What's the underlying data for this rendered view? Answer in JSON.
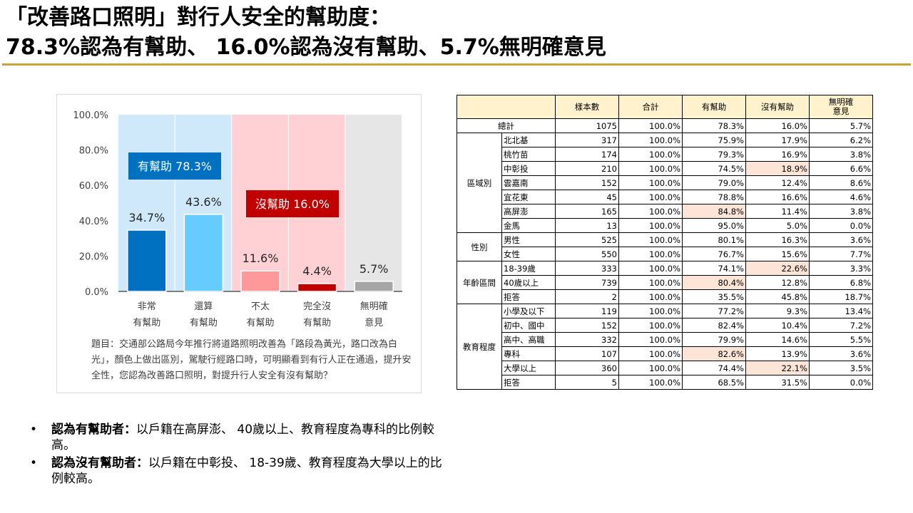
{
  "title_line1": "「改善路口照明」對行人安全的幫助度：",
  "title_line2": "78.3%認為有幫助、 16.0%認為沒有幫助、5.7%無明確意見",
  "chart_data": {
    "type": "bar",
    "categories": [
      [
        "非常",
        "有幫助"
      ],
      [
        "還算",
        "有幫助"
      ],
      [
        "不太",
        "有幫助"
      ],
      [
        "完全沒",
        "有幫助"
      ],
      [
        "無明確",
        "意見"
      ]
    ],
    "values": [
      34.7,
      43.6,
      11.6,
      4.4,
      5.7
    ],
    "value_labels": [
      "34.7%",
      "43.6%",
      "11.6%",
      "4.4%",
      "5.7%"
    ],
    "bar_colors": [
      "#0070c0",
      "#66ccff",
      "#ff9999",
      "#c00000",
      "#a6a6a6"
    ],
    "bg_colors": [
      "#cfe9fa",
      "#cfe9fa",
      "#ffd1d5",
      "#ffd1d5",
      "#e6e6e6"
    ],
    "yticks": [
      "100.0%",
      "80.0%",
      "60.0%",
      "40.0%",
      "20.0%",
      "0.0%"
    ],
    "ylim": [
      0,
      100
    ],
    "annotations": [
      {
        "text": "有幫助 78.3%",
        "color": "#0070c0"
      },
      {
        "text": "沒幫助 16.0%",
        "color": "#c00000"
      }
    ],
    "grid": false
  },
  "question": "題目：交通部公路局今年推行將道路照明改善為「路段為黃光，路口改為白光」，顏色上做出區別，駕駛行經路口時，可明顯看到有行人正在通過，提升安全性，您認為改善路口照明，對提升行人安全有沒有幫助？",
  "table": {
    "headers": [
      "樣本數",
      "合計",
      "有幫助",
      "沒有幫助",
      "無明確\n意見"
    ],
    "total": {
      "label": "總計",
      "values": [
        "1075",
        "100.0%",
        "78.3%",
        "16.0%",
        "5.7%"
      ]
    },
    "groups": [
      {
        "name": "區域別",
        "rows": [
          {
            "label": "北北基",
            "values": [
              "317",
              "100.0%",
              "75.9%",
              "17.9%",
              "6.2%"
            ],
            "hl": []
          },
          {
            "label": "桃竹苗",
            "values": [
              "174",
              "100.0%",
              "79.3%",
              "16.9%",
              "3.8%"
            ],
            "hl": []
          },
          {
            "label": "中彰投",
            "values": [
              "210",
              "100.0%",
              "74.5%",
              "18.9%",
              "6.6%"
            ],
            "hl": [
              3
            ]
          },
          {
            "label": "雲嘉南",
            "values": [
              "152",
              "100.0%",
              "79.0%",
              "12.4%",
              "8.6%"
            ],
            "hl": []
          },
          {
            "label": "宜花東",
            "values": [
              "45",
              "100.0%",
              "78.8%",
              "16.6%",
              "4.6%"
            ],
            "hl": []
          },
          {
            "label": "高屏澎",
            "values": [
              "165",
              "100.0%",
              "84.8%",
              "11.4%",
              "3.8%"
            ],
            "hl": [
              2
            ]
          },
          {
            "label": "金馬",
            "values": [
              "13",
              "100.0%",
              "95.0%",
              "5.0%",
              "0.0%"
            ],
            "hl": []
          }
        ]
      },
      {
        "name": "性別",
        "rows": [
          {
            "label": "男性",
            "values": [
              "525",
              "100.0%",
              "80.1%",
              "16.3%",
              "3.6%"
            ],
            "hl": []
          },
          {
            "label": "女性",
            "values": [
              "550",
              "100.0%",
              "76.7%",
              "15.6%",
              "7.7%"
            ],
            "hl": []
          }
        ]
      },
      {
        "name": "年齡區間",
        "rows": [
          {
            "label": "18-39歲",
            "values": [
              "333",
              "100.0%",
              "74.1%",
              "22.6%",
              "3.3%"
            ],
            "hl": [
              3
            ]
          },
          {
            "label": "40歲以上",
            "values": [
              "739",
              "100.0%",
              "80.4%",
              "12.8%",
              "6.8%"
            ],
            "hl": [
              2
            ]
          },
          {
            "label": "拒答",
            "values": [
              "2",
              "100.0%",
              "35.5%",
              "45.8%",
              "18.7%"
            ],
            "hl": []
          }
        ]
      },
      {
        "name": "教育程度",
        "rows": [
          {
            "label": "小學及以下",
            "values": [
              "119",
              "100.0%",
              "77.2%",
              "9.3%",
              "13.4%"
            ],
            "hl": []
          },
          {
            "label": "初中、國中",
            "values": [
              "152",
              "100.0%",
              "82.4%",
              "10.4%",
              "7.2%"
            ],
            "hl": []
          },
          {
            "label": "高中、高職",
            "values": [
              "332",
              "100.0%",
              "79.9%",
              "14.6%",
              "5.5%"
            ],
            "hl": []
          },
          {
            "label": "專科",
            "values": [
              "107",
              "100.0%",
              "82.6%",
              "13.9%",
              "3.6%"
            ],
            "hl": [
              2
            ]
          },
          {
            "label": "大學以上",
            "values": [
              "360",
              "100.0%",
              "74.4%",
              "22.1%",
              "3.5%"
            ],
            "hl": [
              3
            ]
          },
          {
            "label": "拒答",
            "values": [
              "5",
              "100.0%",
              "68.5%",
              "31.5%",
              "0.0%"
            ],
            "hl": []
          }
        ]
      }
    ],
    "highlight_color": "#fce4d6"
  },
  "notes": [
    {
      "label": "認為有幫助者：",
      "text": "以戶籍在高屏澎、 40歲以上、教育程度為專科的比例較高。"
    },
    {
      "label": "認為沒有幫助者：",
      "text": "以戶籍在中彰投、 18-39歲、教育程度為大學以上的比例較高。"
    }
  ],
  "bullet_glyph": "•"
}
